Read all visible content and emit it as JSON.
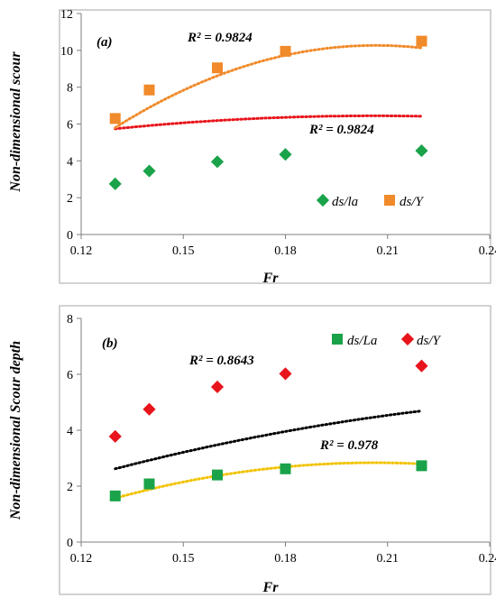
{
  "chart_data": [
    {
      "type": "scatter",
      "panel_label": "(a)",
      "xlabel": "Fr",
      "ylabel": "Non-dimensional scour",
      "xlim": [
        0.12,
        0.24
      ],
      "ylim": [
        0,
        12
      ],
      "xticks": [
        "0.12",
        "0.15",
        "0.18",
        "0.21",
        "0.24"
      ],
      "yticks": [
        "0",
        "2",
        "4",
        "6",
        "8",
        "10",
        "12"
      ],
      "grid": false,
      "legend_position": "bottom-right",
      "series": [
        {
          "name": "ds/la",
          "marker": "diamond",
          "color": "#1aa34a",
          "trend_color": "#e8141b",
          "r2": "R² = 0.9824",
          "x": [
            0.13,
            0.14,
            0.16,
            0.18,
            0.22
          ],
          "y": [
            2.75,
            3.45,
            3.95,
            4.35,
            4.55
          ],
          "trend": [
            1.2617,
            50.333,
            -122.19
          ]
        },
        {
          "name": "ds/Y",
          "marker": "square",
          "color": "#f08a2a",
          "trend_color": "#f08a2a",
          "r2": "R² = 0.9824",
          "x": [
            0.13,
            0.14,
            0.16,
            0.18,
            0.22
          ],
          "y": [
            6.3,
            7.85,
            9.05,
            9.95,
            10.5
          ],
          "trend": [
            -22.24,
            314.76,
            -761.89
          ]
        }
      ]
    },
    {
      "type": "scatter",
      "panel_label": "(b)",
      "xlabel": "Fr",
      "ylabel": "Non-dimensional Scour depth",
      "xlim": [
        0.12,
        0.24
      ],
      "ylim": [
        0,
        8
      ],
      "xticks": [
        "0.12",
        "0.15",
        "0.18",
        "0.21",
        "0.24"
      ],
      "yticks": [
        "0",
        "2",
        "4",
        "6",
        "8"
      ],
      "grid": false,
      "legend_position": "top-right",
      "series": [
        {
          "name": "ds/La",
          "marker": "square",
          "color": "#1aa34a",
          "trend_color": "#f2c200",
          "r2": "R² = 0.978",
          "x": [
            0.13,
            0.14,
            0.16,
            0.18,
            0.22
          ],
          "y": [
            1.65,
            2.08,
            2.4,
            2.62,
            2.73
          ],
          "trend": [
            -6.46,
            90.23,
            -218.9
          ]
        },
        {
          "name": "ds/Y",
          "marker": "diamond",
          "color": "#e8141b",
          "trend_color": "#000000",
          "r2": "R² = 0.8643",
          "x": [
            0.13,
            0.14,
            0.16,
            0.18,
            0.22
          ],
          "y": [
            3.78,
            4.75,
            5.55,
            6.02,
            6.3
          ],
          "trend": [
            -3.0,
            55.2,
            -92.0
          ]
        }
      ]
    }
  ]
}
